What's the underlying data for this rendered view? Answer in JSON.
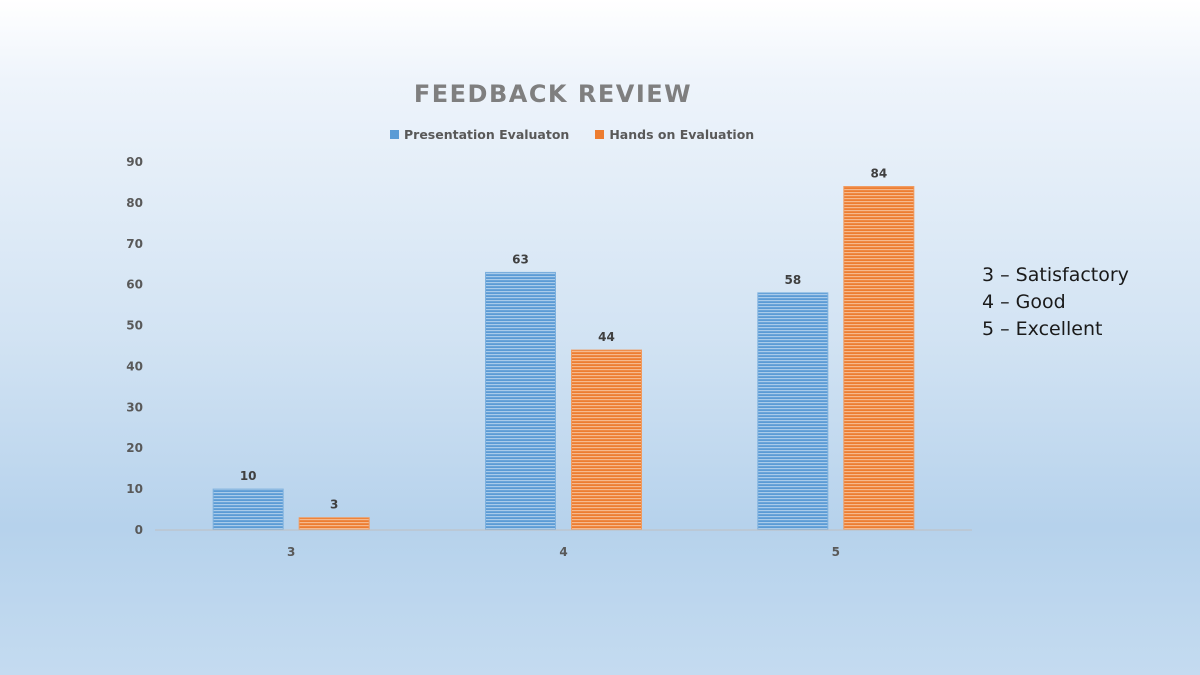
{
  "chart_data": {
    "type": "bar",
    "title": "FEEDBACK REVIEW",
    "categories": [
      "3",
      "4",
      "5"
    ],
    "series": [
      {
        "name": "Presentation Evaluaton",
        "values": [
          10,
          63,
          58
        ],
        "color": "#5b9bd5"
      },
      {
        "name": "Hands on Evaluation",
        "values": [
          3,
          44,
          84
        ],
        "color": "#ed7d31"
      }
    ],
    "ylim": [
      0,
      90
    ],
    "yticks": [
      0,
      10,
      20,
      30,
      40,
      50,
      60,
      70,
      80,
      90
    ],
    "xlabel": "",
    "ylabel": "",
    "grid": false,
    "legend_position": "top",
    "data_labels": true
  },
  "scale_key": {
    "lines": [
      "3 – Satisfactory",
      "4 – Good",
      "5 – Excellent"
    ]
  }
}
